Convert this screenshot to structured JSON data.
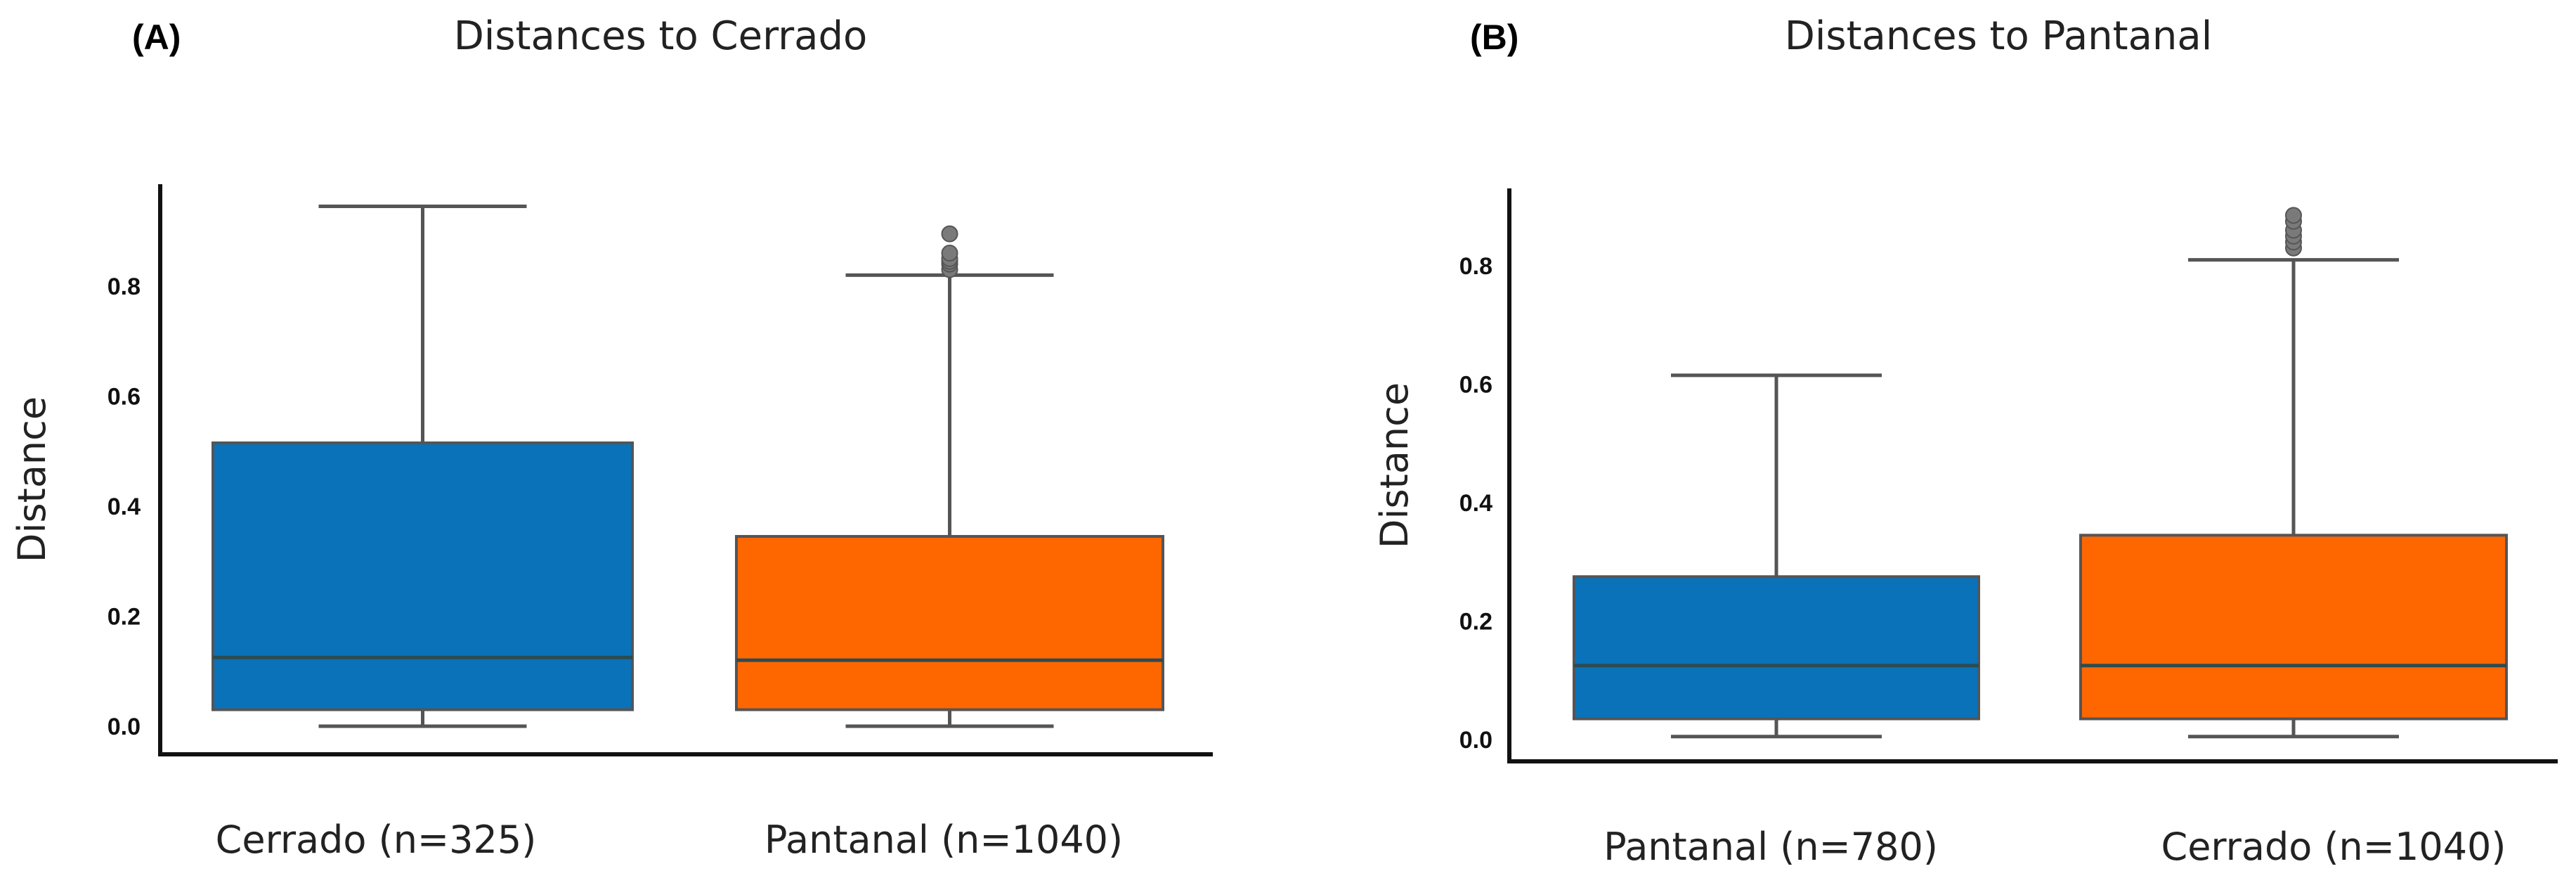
{
  "colors": {
    "panel_tag": "#e0151b",
    "blue": "#0a72b8",
    "orange": "#fe6600",
    "line": "#555555",
    "axis": "#111111"
  },
  "chart_data": [
    {
      "type": "box",
      "panel_tag": "(A)",
      "title": "Distances to Cerrado",
      "xlabel": "",
      "ylabel": "Distance",
      "ylim": [
        -0.02,
        0.98
      ],
      "yticks": [
        0.0,
        0.2,
        0.4,
        0.6,
        0.8
      ],
      "ytick_labels": [
        "0.0",
        "0.2",
        "0.4",
        "0.6",
        "0.8"
      ],
      "categories": [
        "Cerrado (n=325)",
        "Pantanal (n=1040)"
      ],
      "boxes": [
        {
          "name": "Cerrado (n=325)",
          "color": "#0a72b8",
          "whisker_low": 0.0,
          "q1": 0.03,
          "median": 0.125,
          "q3": 0.515,
          "whisker_high": 0.945,
          "outliers": []
        },
        {
          "name": "Pantanal (n=1040)",
          "color": "#fe6600",
          "whisker_low": 0.0,
          "q1": 0.03,
          "median": 0.12,
          "q3": 0.345,
          "whisker_high": 0.82,
          "outliers": [
            0.83,
            0.84,
            0.845,
            0.85,
            0.86,
            0.895
          ]
        }
      ]
    },
    {
      "type": "box",
      "panel_tag": "(B)",
      "title": "Distances to Pantanal",
      "xlabel": "",
      "ylabel": "Distance",
      "ylim": [
        -0.04,
        0.92
      ],
      "yticks": [
        0.0,
        0.2,
        0.4,
        0.6,
        0.8
      ],
      "ytick_labels": [
        "0.0",
        "0.2",
        "0.4",
        "0.6",
        "0.8"
      ],
      "categories": [
        "Pantanal (n=780)",
        "Cerrado (n=1040)"
      ],
      "boxes": [
        {
          "name": "Pantanal (n=780)",
          "color": "#0a72b8",
          "whisker_low": 0.005,
          "q1": 0.035,
          "median": 0.125,
          "q3": 0.275,
          "whisker_high": 0.615,
          "outliers": []
        },
        {
          "name": "Cerrado (n=1040)",
          "color": "#fe6600",
          "whisker_low": 0.005,
          "q1": 0.035,
          "median": 0.125,
          "q3": 0.345,
          "whisker_high": 0.81,
          "outliers": [
            0.83,
            0.84,
            0.85,
            0.86,
            0.875,
            0.885
          ]
        }
      ]
    }
  ]
}
